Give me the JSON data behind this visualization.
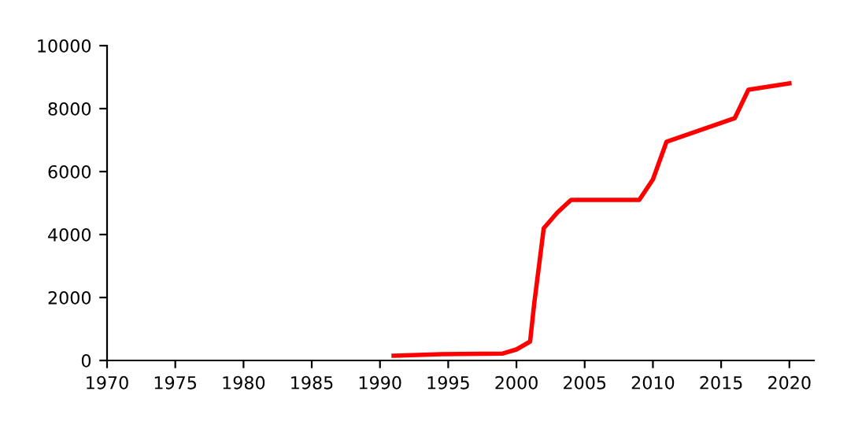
{
  "chart_data": {
    "type": "line",
    "x": [
      1991,
      1994.5,
      1999,
      2000,
      2001,
      2001.3,
      2002,
      2003,
      2004,
      2009,
      2010,
      2011,
      2016,
      2017,
      2020
    ],
    "series": [
      {
        "color": "#ff0000",
        "values": [
          150,
          200,
          220,
          350,
          600,
          1800,
          4200,
          4700,
          5100,
          5100,
          5750,
          6950,
          7700,
          8600,
          8800
        ]
      }
    ],
    "xlim": [
      1970,
      2021.8
    ],
    "xticks": [
      1970,
      1975,
      1980,
      1985,
      1990,
      1995,
      2000,
      2005,
      2010,
      2015,
      2020
    ],
    "ylim": [
      0,
      10000
    ],
    "yticks": [
      0,
      2000,
      4000,
      6000,
      8000,
      10000
    ],
    "grid": false
  }
}
